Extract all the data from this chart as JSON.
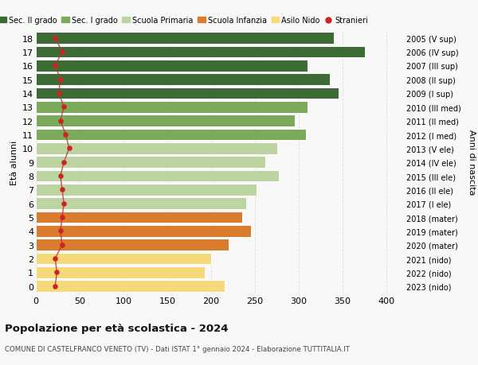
{
  "ages": [
    18,
    17,
    16,
    15,
    14,
    13,
    12,
    11,
    10,
    9,
    8,
    7,
    6,
    5,
    4,
    3,
    2,
    1,
    0
  ],
  "years_labels": [
    "2005 (V sup)",
    "2006 (IV sup)",
    "2007 (III sup)",
    "2008 (II sup)",
    "2009 (I sup)",
    "2010 (III med)",
    "2011 (II med)",
    "2012 (I med)",
    "2013 (V ele)",
    "2014 (IV ele)",
    "2015 (III ele)",
    "2016 (II ele)",
    "2017 (I ele)",
    "2018 (mater)",
    "2019 (mater)",
    "2020 (mater)",
    "2021 (nido)",
    "2022 (nido)",
    "2023 (nido)"
  ],
  "values": [
    340,
    375,
    310,
    335,
    345,
    310,
    295,
    308,
    275,
    262,
    277,
    252,
    240,
    235,
    245,
    220,
    200,
    193,
    215
  ],
  "stranieri": [
    22,
    30,
    22,
    28,
    26,
    32,
    28,
    34,
    38,
    32,
    28,
    30,
    32,
    30,
    28,
    30,
    22,
    24,
    22
  ],
  "bar_colors": [
    "#3d6b35",
    "#3d6b35",
    "#3d6b35",
    "#3d6b35",
    "#3d6b35",
    "#7aaa5a",
    "#7aaa5a",
    "#7aaa5a",
    "#bbd4a0",
    "#bbd4a0",
    "#bbd4a0",
    "#bbd4a0",
    "#bbd4a0",
    "#d97c2e",
    "#d97c2e",
    "#d97c2e",
    "#f5d97a",
    "#f5d97a",
    "#f5d97a"
  ],
  "legend_labels": [
    "Sec. II grado",
    "Sec. I grado",
    "Scuola Primaria",
    "Scuola Infanzia",
    "Asilo Nido",
    "Stranieri"
  ],
  "legend_colors": [
    "#3d6b35",
    "#7aaa5a",
    "#bbd4a0",
    "#d97c2e",
    "#f5d97a",
    "#cc2222"
  ],
  "stranieri_color": "#cc2222",
  "stranieri_line_color": "#bb3333",
  "ylabel_left": "Età alunni",
  "ylabel_right": "Anni di nascita",
  "title": "Popolazione per età scolastica - 2024",
  "subtitle": "COMUNE DI CASTELFRANCO VENETO (TV) - Dati ISTAT 1° gennaio 2024 - Elaborazione TUTTITALIA.IT",
  "xlim": [
    0,
    420
  ],
  "xticks": [
    0,
    50,
    100,
    150,
    200,
    250,
    300,
    350,
    400
  ],
  "bg_color": "#f8f8f8",
  "grid_color": "#dddddd",
  "bar_height": 0.85
}
